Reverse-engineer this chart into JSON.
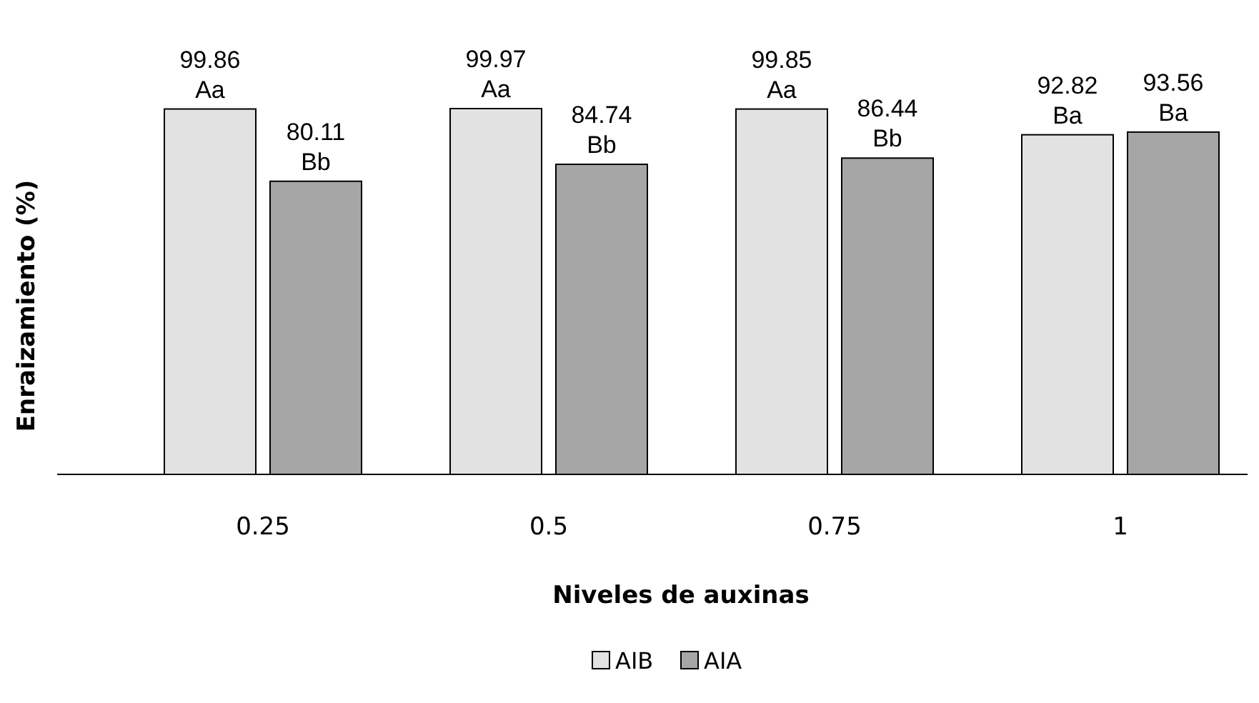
{
  "chart_data": {
    "type": "bar",
    "xlabel": "Niveles de auxinas",
    "ylabel": "Enraizamiento (%)",
    "categories": [
      "0.25",
      "0.5",
      "0.75",
      "1"
    ],
    "series": [
      {
        "name": "AIB",
        "color": "#e2e2e2",
        "values": [
          99.86,
          99.97,
          99.85,
          92.82
        ],
        "value_labels": [
          "99.86\nAa",
          "99.97\nAa",
          "99.85\nAa",
          "92.82\nBa"
        ]
      },
      {
        "name": "AIA",
        "color": "#a6a6a6",
        "values": [
          80.11,
          84.74,
          86.44,
          93.56
        ],
        "value_labels": [
          "80.11\nBb",
          "84.74\nBb",
          "86.44\nBb",
          "93.56\nBa"
        ]
      }
    ],
    "legend": "bottom"
  }
}
